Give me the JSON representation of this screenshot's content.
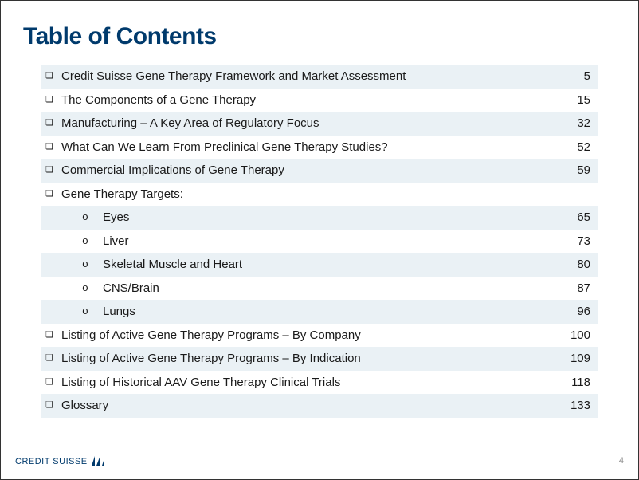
{
  "title": "Table of Contents",
  "rows": [
    {
      "level": 0,
      "label": "Credit Suisse Gene Therapy Framework and Market Assessment",
      "page": "5",
      "shaded": true
    },
    {
      "level": 0,
      "label": "The Components of a Gene Therapy",
      "page": "15",
      "shaded": false
    },
    {
      "level": 0,
      "label": "Manufacturing – A Key Area of Regulatory Focus",
      "page": "32",
      "shaded": true
    },
    {
      "level": 0,
      "label": "What Can We Learn From Preclinical Gene Therapy Studies?",
      "page": "52",
      "shaded": false
    },
    {
      "level": 0,
      "label": "Commercial Implications of Gene Therapy",
      "page": "59",
      "shaded": true
    },
    {
      "level": 0,
      "label": "Gene Therapy Targets:",
      "page": "",
      "shaded": false
    },
    {
      "level": 1,
      "label": "Eyes",
      "page": "65",
      "shaded": true
    },
    {
      "level": 1,
      "label": "Liver",
      "page": "73",
      "shaded": false
    },
    {
      "level": 1,
      "label": "Skeletal Muscle and Heart",
      "page": "80",
      "shaded": true
    },
    {
      "level": 1,
      "label": "CNS/Brain",
      "page": "87",
      "shaded": false
    },
    {
      "level": 1,
      "label": "Lungs",
      "page": "96",
      "shaded": true
    },
    {
      "level": 0,
      "label": "Listing of Active Gene Therapy Programs – By Company",
      "page": "100",
      "shaded": false
    },
    {
      "level": 0,
      "label": "Listing of Active Gene Therapy Programs – By Indication",
      "page": "109",
      "shaded": true
    },
    {
      "level": 0,
      "label": "Listing of Historical AAV Gene Therapy Clinical Trials",
      "page": "118",
      "shaded": false
    },
    {
      "level": 0,
      "label": "Glossary",
      "page": "133",
      "shaded": true
    }
  ],
  "bullet_glyphs": {
    "top": "❏",
    "sub": "o"
  },
  "colors": {
    "title": "#003a6c",
    "text": "#1a1a1a",
    "row_shade": "#eaf1f5",
    "logo": "#003a6c",
    "pagenum": "#8a8a8a",
    "background": "#ffffff"
  },
  "typography": {
    "title_fontsize": 30,
    "row_fontsize": 15,
    "footer_fontsize": 11,
    "font_family": "Arial"
  },
  "layout": {
    "slide_width": 802,
    "slide_height": 602,
    "toc_width": 700,
    "row_height": 29.5
  },
  "footer": {
    "logo_text": "CREDIT SUISSE",
    "page_number": "4"
  }
}
